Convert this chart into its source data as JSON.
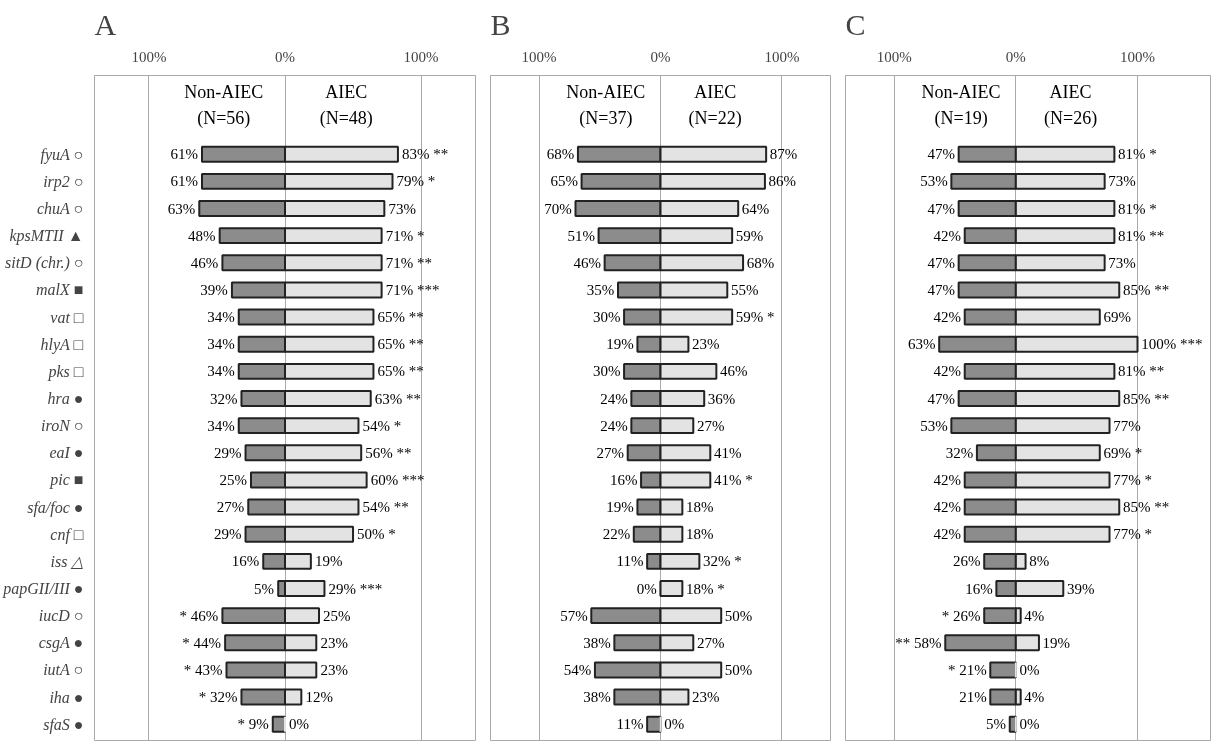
{
  "chart_data": [
    {
      "type": "bar",
      "orientation": "horizontal",
      "title": "A",
      "categories": [
        "fyuA ○",
        "irp2 ○",
        "chuA ○",
        "kpsMTII ▲",
        "sitD (chr.) ○",
        "malX ■",
        "vat □",
        "hlyA □",
        "pks □",
        "hra ●",
        "iroN ○",
        "eaI ●",
        "pic ■",
        "sfa/foc ●",
        "cnf □",
        "iss △",
        "papGII/III ●",
        "iucD ○",
        "csgA ●",
        "iutA ○",
        "iha ●",
        "sfaS ●"
      ],
      "xlim": [
        -140,
        140
      ],
      "xticks": [
        {
          "value": -100,
          "label": "100%"
        },
        {
          "value": 0,
          "label": "0%"
        },
        {
          "value": 100,
          "label": "100%"
        }
      ],
      "grid": "x",
      "legend": "top",
      "series": [
        {
          "name": "Non-AIEC (N=56)",
          "color": "#8c8c8c",
          "values": [
            61,
            61,
            63,
            48,
            46,
            39,
            34,
            34,
            34,
            32,
            34,
            29,
            25,
            27,
            29,
            16,
            5,
            46,
            44,
            43,
            32,
            9
          ],
          "base": [
            -61,
            -61,
            -63,
            -48,
            -46,
            -39,
            -34,
            -34,
            -34,
            -32,
            -34,
            -29,
            -25,
            -27,
            -29,
            -16,
            -5,
            -46,
            -44,
            -43,
            -32,
            -9
          ],
          "value_labels": [
            "61%",
            "61%",
            "63%",
            "48%",
            "46%",
            "39%",
            "34%",
            "34%",
            "34%",
            "32%",
            "34%",
            "29%",
            "25%",
            "27%",
            "29%",
            "16%",
            "5%",
            "* 46%",
            "* 44%",
            "* 43%",
            "* 32%",
            "* 9%"
          ]
        },
        {
          "name": "AIEC (N=48)",
          "color": "#e3e3e3",
          "values": [
            83,
            79,
            73,
            71,
            71,
            71,
            65,
            65,
            65,
            63,
            54,
            56,
            60,
            54,
            50,
            19,
            29,
            25,
            23,
            23,
            12,
            0
          ],
          "value_labels": [
            "83% **",
            "79% *",
            "73%",
            "71% *",
            "71% **",
            "71% ***",
            "65% **",
            "65% **",
            "65% **",
            "63% **",
            "54% *",
            "56% **",
            "60% ***",
            "54% **",
            "50% *",
            "19%",
            "29% ***",
            "25%",
            "23%",
            "23%",
            "12%",
            "0%"
          ]
        }
      ]
    },
    {
      "type": "bar",
      "orientation": "horizontal",
      "title": "B",
      "tick_labels": "x",
      "categories": [
        null,
        null,
        null,
        null,
        null,
        null,
        null,
        null,
        null,
        null,
        null,
        null,
        null,
        null,
        null,
        null,
        null,
        null,
        null,
        null,
        null,
        null
      ],
      "xlim": [
        -140,
        140
      ],
      "xticks": [
        {
          "value": -100,
          "label": "100%"
        },
        {
          "value": 0,
          "label": "0%"
        },
        {
          "value": 100,
          "label": "100%"
        }
      ],
      "grid": "x",
      "legend": "top",
      "series": [
        {
          "name": "Non-AIEC (N=37)",
          "color": "#8c8c8c",
          "values": [
            68,
            65,
            70,
            51,
            46,
            35,
            30,
            19,
            30,
            24,
            24,
            27,
            16,
            19,
            22,
            11,
            0,
            57,
            38,
            54,
            38,
            11
          ],
          "base": [
            -68,
            -65,
            -70,
            -51,
            -46,
            -35,
            -30,
            -19,
            -30,
            -24,
            -24,
            -27,
            -16,
            -19,
            -22,
            -11,
            0,
            -57,
            -38,
            -54,
            -38,
            -11
          ],
          "value_labels": [
            "68%",
            "65%",
            "70%",
            "51%",
            "46%",
            "35%",
            "30%",
            "19%",
            "30%",
            "24%",
            "24%",
            "27%",
            "16%",
            "19%",
            "22%",
            "11%",
            "0%",
            "57%",
            "38%",
            "54%",
            "38%",
            "11%"
          ]
        },
        {
          "name": "AIEC (N=22)",
          "color": "#e3e3e3",
          "values": [
            87,
            86,
            64,
            59,
            68,
            55,
            59,
            23,
            46,
            36,
            27,
            41,
            41,
            18,
            18,
            32,
            18,
            50,
            27,
            50,
            23,
            0
          ],
          "value_labels": [
            "87%",
            "86%",
            "64%",
            "59%",
            "68%",
            "55%",
            "59% *",
            "23%",
            "46%",
            "36%",
            "27%",
            "41%",
            "41% *",
            "18%",
            "18%",
            "32% *",
            "18% *",
            "50%",
            "27%",
            "50%",
            "23%",
            "0%"
          ]
        }
      ]
    },
    {
      "type": "bar",
      "orientation": "horizontal",
      "title": "C",
      "tick_labels": "x",
      "categories": [
        null,
        null,
        null,
        null,
        null,
        null,
        null,
        null,
        null,
        null,
        null,
        null,
        null,
        null,
        null,
        null,
        null,
        null,
        null,
        null,
        null,
        null
      ],
      "xlim": [
        -140,
        160
      ],
      "xticks": [
        {
          "value": -100,
          "label": "100%"
        },
        {
          "value": 0,
          "label": "0%"
        },
        {
          "value": 100,
          "label": "100%"
        }
      ],
      "grid": "x",
      "legend": "top",
      "series": [
        {
          "name": "Non-AIEC (N=19)",
          "color": "#8c8c8c",
          "values": [
            47,
            53,
            47,
            42,
            47,
            47,
            42,
            63,
            42,
            47,
            53,
            32,
            42,
            42,
            42,
            26,
            16,
            26,
            58,
            21,
            21,
            5
          ],
          "base": [
            -47,
            -53,
            -47,
            -42,
            -47,
            -47,
            -42,
            -63,
            -42,
            -47,
            -53,
            -32,
            -42,
            -42,
            -42,
            -26,
            -16,
            -26,
            -58,
            -21,
            -21,
            -5
          ],
          "value_labels": [
            "47%",
            "53%",
            "47%",
            "42%",
            "47%",
            "47%",
            "42%",
            "63%",
            "42%",
            "47%",
            "53%",
            "32%",
            "42%",
            "42%",
            "42%",
            "26%",
            "16%",
            "* 26%",
            "** 58%",
            "* 21%",
            "21%",
            "5%"
          ]
        },
        {
          "name": "AIEC (N=26)",
          "color": "#e3e3e3",
          "values": [
            81,
            73,
            81,
            81,
            73,
            85,
            69,
            100,
            81,
            85,
            77,
            69,
            77,
            85,
            77,
            8,
            39,
            4,
            19,
            0,
            4,
            0
          ],
          "value_labels": [
            "81% *",
            "73%",
            "81% *",
            "81% **",
            "73%",
            "85% **",
            "69%",
            "100% ***",
            "81% **",
            "85% **",
            "77%",
            "69% *",
            "77% *",
            "85% **",
            "77% *",
            "8%",
            "39%",
            "4%",
            "19%",
            "0%",
            "4%",
            "0%"
          ]
        }
      ]
    }
  ]
}
